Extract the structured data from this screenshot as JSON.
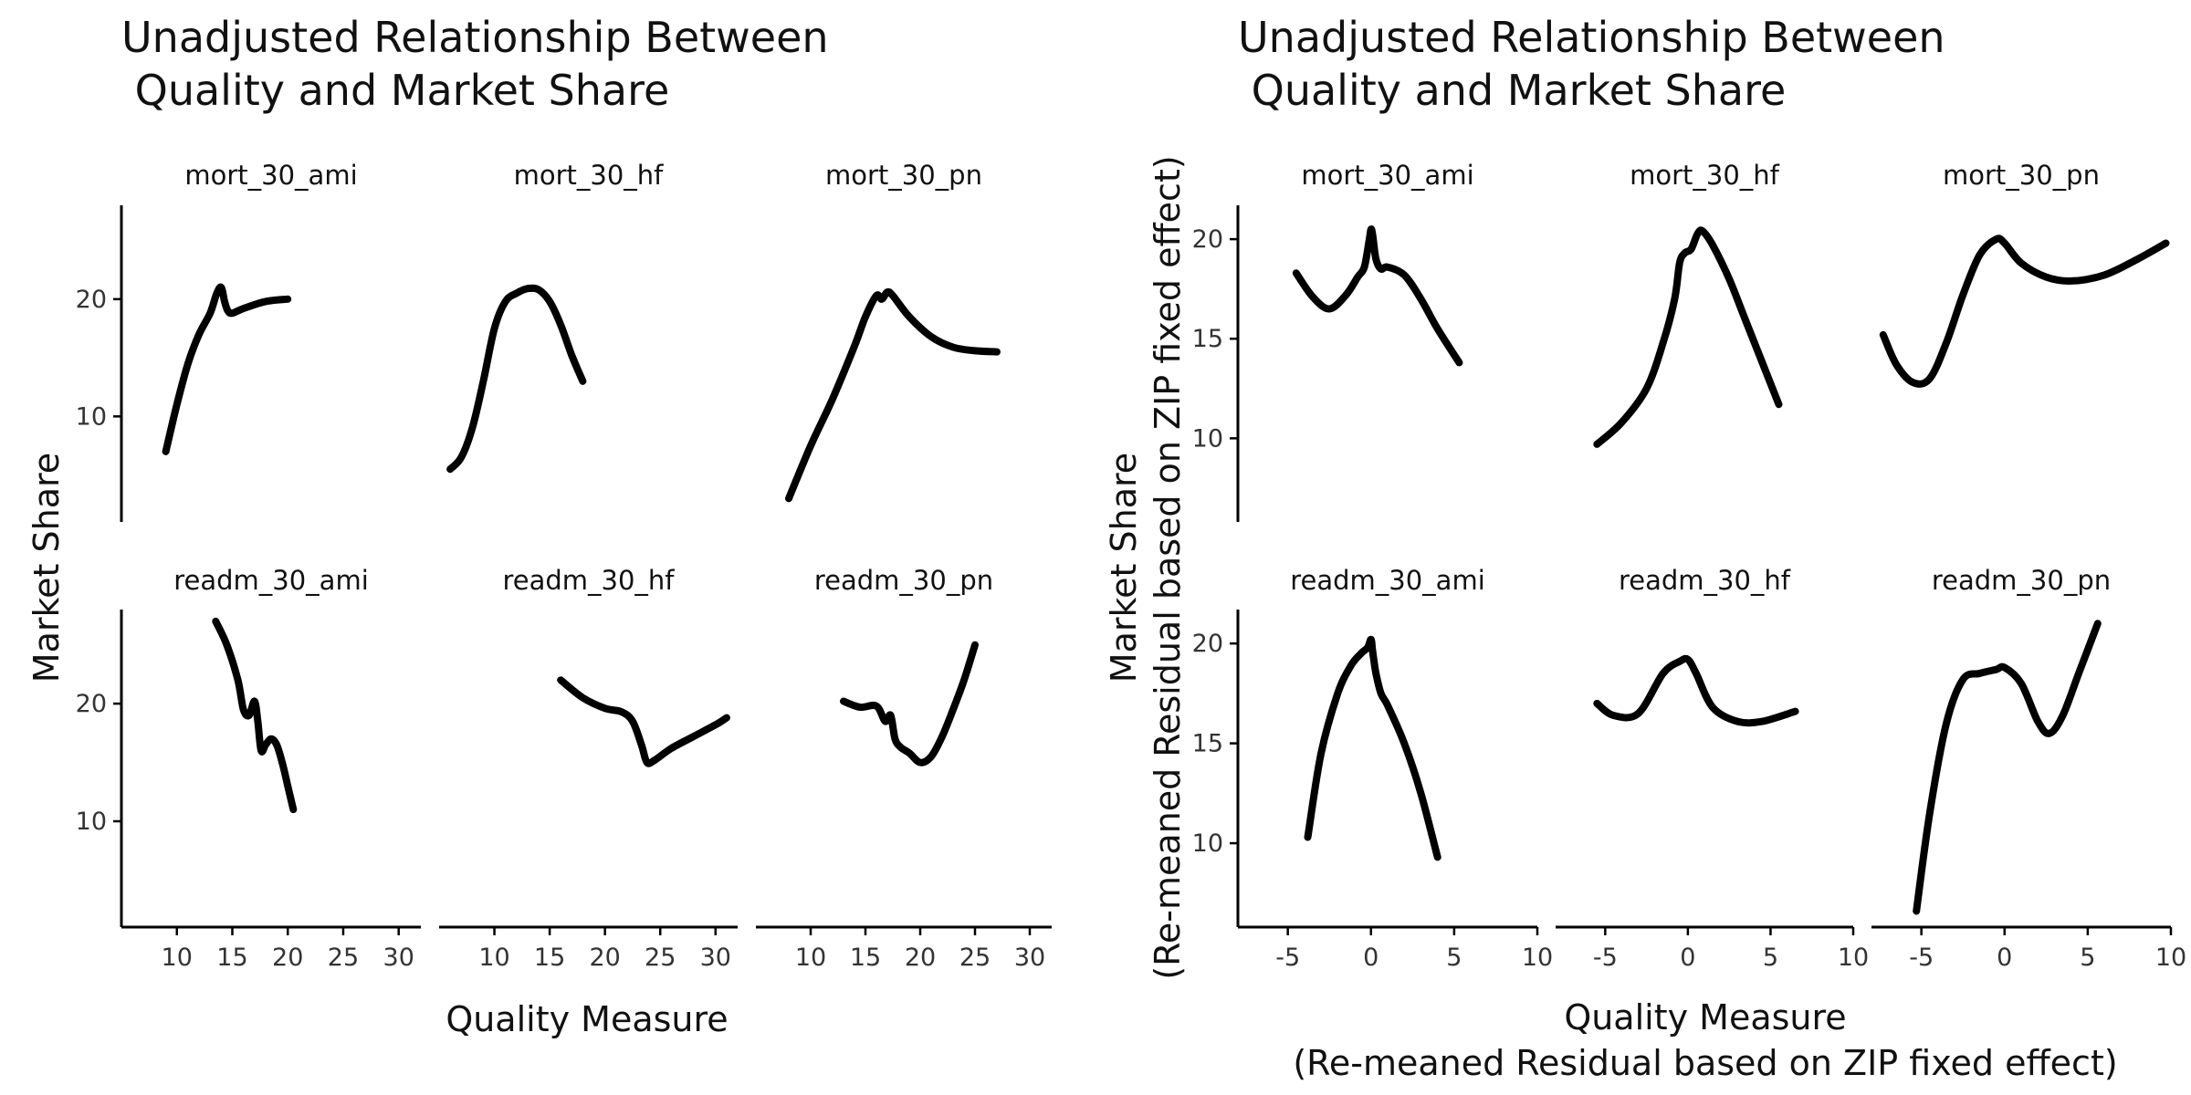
{
  "chart_data": [
    {
      "type": "line",
      "title": "Unadjusted Relationship Between\n Quality and Market Share",
      "xlabel": "Quality Measure",
      "ylabel": "Market Share",
      "xlim": [
        5,
        32
      ],
      "ylim": [
        1,
        28
      ],
      "x_ticks": [
        10,
        15,
        20,
        25,
        30
      ],
      "x_tick_labels": [
        "10",
        "15",
        "20",
        "25",
        "30"
      ],
      "y_ticks": [
        10,
        20
      ],
      "y_tick_labels": [
        "10",
        "20"
      ],
      "grid": false,
      "panels": [
        {
          "strip": "mort_30_ami",
          "x": [
            9,
            10,
            11,
            12,
            13,
            13.6,
            14,
            14.3,
            14.6,
            15,
            16,
            18,
            20
          ],
          "y": [
            7,
            11,
            14.5,
            17,
            18.8,
            20.5,
            21,
            19.8,
            19,
            18.8,
            19.2,
            19.8,
            20
          ]
        },
        {
          "strip": "mort_30_hf",
          "x": [
            6,
            7,
            8,
            9,
            10,
            11,
            12,
            13,
            14,
            15,
            16,
            17,
            18
          ],
          "y": [
            5.5,
            6.5,
            9,
            13,
            17.5,
            19.8,
            20.5,
            20.9,
            20.8,
            19.8,
            17.8,
            15.2,
            13
          ]
        },
        {
          "strip": "mort_30_pn",
          "x": [
            8,
            10,
            12,
            14,
            15,
            16,
            16.5,
            17,
            17.5,
            19,
            21,
            23,
            25,
            27
          ],
          "y": [
            3,
            7.5,
            11.5,
            16,
            18.5,
            20.3,
            20,
            20.6,
            20.3,
            18.5,
            16.8,
            15.9,
            15.6,
            15.5
          ]
        },
        {
          "strip": "readm_30_ami",
          "x": [
            13.5,
            14.5,
            15.5,
            16,
            16.5,
            17,
            17.3,
            17.6,
            18,
            18.5,
            19,
            19.5,
            20,
            20.5
          ],
          "y": [
            27,
            25,
            22,
            19.5,
            19,
            20.2,
            18.5,
            16,
            16.5,
            17,
            16.5,
            15,
            13,
            11
          ]
        },
        {
          "strip": "readm_30_hf",
          "x": [
            16,
            18,
            20,
            21.5,
            22.5,
            23.3,
            23.8,
            24.5,
            26,
            28,
            30,
            31
          ],
          "y": [
            22,
            20.5,
            19.6,
            19.3,
            18.5,
            16.5,
            15,
            15.2,
            16.2,
            17.2,
            18.2,
            18.8
          ]
        },
        {
          "strip": "readm_30_pn",
          "x": [
            13,
            14.5,
            16,
            16.8,
            17.3,
            17.7,
            18.2,
            19,
            20,
            21,
            22,
            23,
            24,
            25
          ],
          "y": [
            20.2,
            19.7,
            19.8,
            18.5,
            19,
            17,
            16.3,
            15.8,
            15,
            15.5,
            17.2,
            19.5,
            22,
            25
          ]
        }
      ]
    },
    {
      "type": "line",
      "title": "Unadjusted Relationship Between\n Quality and Market Share",
      "xlabel": "Quality Measure\n(Re-meaned Residual based on ZIP fixed effect)",
      "ylabel": "Market Share\n(Re-meaned Residual based on ZIP fixed effect)",
      "xlim": [
        -8,
        10
      ],
      "ylim": [
        5.8,
        21.7
      ],
      "x_ticks": [
        -5,
        0,
        5,
        10
      ],
      "x_tick_labels": [
        "-5",
        "0",
        "5",
        "10"
      ],
      "y_ticks": [
        10,
        15,
        20
      ],
      "y_tick_labels": [
        "10",
        "15",
        "20"
      ],
      "grid": false,
      "panels": [
        {
          "strip": "mort_30_ami",
          "x": [
            -4.5,
            -3.5,
            -2.5,
            -1.5,
            -0.8,
            -0.4,
            -0.1,
            0,
            0.1,
            0.3,
            0.6,
            1,
            2,
            3,
            4,
            5.3
          ],
          "y": [
            18.3,
            17.1,
            16.5,
            17.2,
            18.1,
            18.6,
            20,
            20.5,
            20.2,
            19,
            18.5,
            18.6,
            18.2,
            17,
            15.5,
            13.8
          ]
        },
        {
          "strip": "mort_30_hf",
          "x": [
            -5.5,
            -4,
            -2.5,
            -1.5,
            -0.8,
            -0.5,
            -0.2,
            0.2,
            0.6,
            0.9,
            1.5,
            2.5,
            3.5,
            4.5,
            5.5
          ],
          "y": [
            9.7,
            10.8,
            12.5,
            14.8,
            17,
            18.8,
            19.3,
            19.5,
            20.3,
            20.4,
            19.7,
            18,
            15.9,
            13.8,
            11.7
          ]
        },
        {
          "strip": "mort_30_pn",
          "x": [
            -7.3,
            -6.5,
            -5.5,
            -4.5,
            -3.5,
            -2.5,
            -1.5,
            -0.5,
            0,
            1,
            2.5,
            4,
            6,
            8,
            9.7
          ],
          "y": [
            15.2,
            13.7,
            12.8,
            13,
            14.8,
            17.2,
            19.2,
            20,
            19.8,
            18.8,
            18.1,
            17.9,
            18.2,
            19,
            19.8
          ]
        },
        {
          "strip": "readm_30_ami",
          "x": [
            -3.8,
            -3,
            -2,
            -1.2,
            -0.6,
            -0.2,
            0,
            0.1,
            0.3,
            0.6,
            1,
            2,
            3,
            4
          ],
          "y": [
            10.3,
            14.5,
            17.5,
            18.9,
            19.5,
            19.8,
            20.2,
            19.6,
            18.5,
            17.5,
            16.9,
            15,
            12.5,
            9.3
          ]
        },
        {
          "strip": "readm_30_hf",
          "x": [
            -5.5,
            -4.5,
            -3,
            -1.5,
            -0.5,
            0,
            0.5,
            1.5,
            3,
            4.5,
            6.5
          ],
          "y": [
            17,
            16.4,
            16.5,
            18.5,
            19.1,
            19.2,
            18.5,
            16.8,
            16.1,
            16.1,
            16.6
          ]
        },
        {
          "strip": "readm_30_pn",
          "x": [
            -5.3,
            -4.5,
            -3.5,
            -2.5,
            -1.5,
            -0.5,
            0,
            1,
            2,
            2.7,
            3.5,
            4.5,
            5.6
          ],
          "y": [
            6.6,
            11.5,
            16,
            18.2,
            18.5,
            18.7,
            18.8,
            18,
            16.1,
            15.5,
            16.4,
            18.6,
            21
          ]
        }
      ]
    }
  ]
}
